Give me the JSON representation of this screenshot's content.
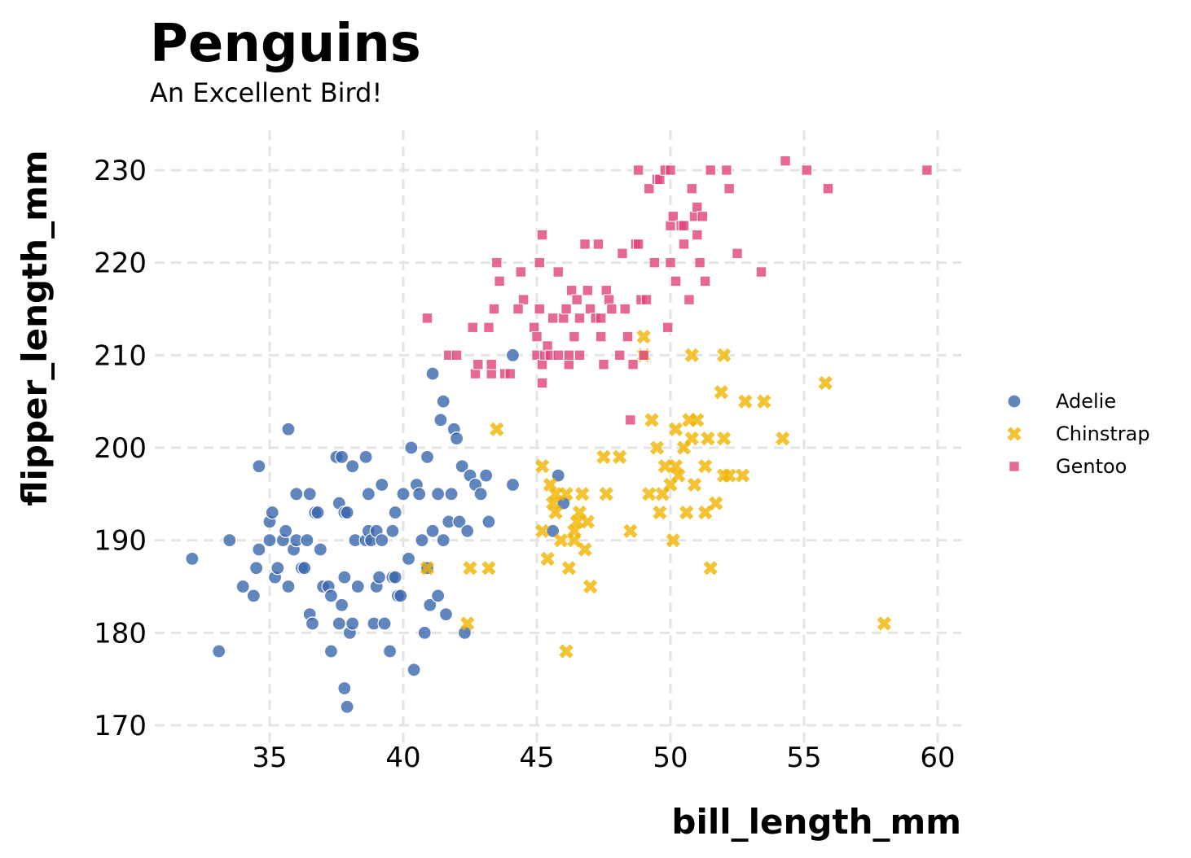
{
  "chart_data": {
    "type": "scatter",
    "title": "Penguins",
    "subtitle": "An Excellent Bird!",
    "xlabel": "bill_length_mm",
    "ylabel": "flipper_length_mm",
    "xlim": [
      31,
      61
    ],
    "ylim": [
      169,
      234
    ],
    "xticks": [
      35,
      40,
      45,
      50,
      55,
      60
    ],
    "xtick_labels": [
      "35",
      "40",
      "45",
      "50",
      "55",
      "60"
    ],
    "yticks": [
      170,
      180,
      190,
      200,
      210,
      220,
      230
    ],
    "ytick_labels": [
      "170",
      "180",
      "190",
      "200",
      "210",
      "220",
      "230"
    ],
    "grid": true,
    "legend_position": "right",
    "series": [
      {
        "name": "Adelie",
        "marker": "circle",
        "color": "#3a66ad",
        "points": [
          [
            32.1,
            188
          ],
          [
            33.1,
            178
          ],
          [
            33.5,
            190
          ],
          [
            34.0,
            185
          ],
          [
            34.4,
            184
          ],
          [
            34.5,
            187
          ],
          [
            34.6,
            198
          ],
          [
            34.6,
            189
          ],
          [
            35.0,
            190
          ],
          [
            35.0,
            192
          ],
          [
            35.1,
            193
          ],
          [
            35.2,
            186
          ],
          [
            35.3,
            187
          ],
          [
            35.5,
            190
          ],
          [
            35.6,
            191
          ],
          [
            35.7,
            202
          ],
          [
            35.7,
            185
          ],
          [
            35.9,
            189
          ],
          [
            36.0,
            195
          ],
          [
            36.0,
            190
          ],
          [
            36.2,
            187
          ],
          [
            36.3,
            187
          ],
          [
            36.4,
            190
          ],
          [
            36.5,
            182
          ],
          [
            36.5,
            195
          ],
          [
            36.6,
            181
          ],
          [
            36.7,
            193
          ],
          [
            36.8,
            193
          ],
          [
            36.9,
            189
          ],
          [
            37.0,
            185
          ],
          [
            37.2,
            185
          ],
          [
            37.3,
            184
          ],
          [
            37.3,
            178
          ],
          [
            37.5,
            199
          ],
          [
            37.6,
            194
          ],
          [
            37.6,
            181
          ],
          [
            37.7,
            199
          ],
          [
            37.7,
            183
          ],
          [
            37.8,
            186
          ],
          [
            37.8,
            174
          ],
          [
            37.8,
            193
          ],
          [
            37.9,
            172
          ],
          [
            37.9,
            193
          ],
          [
            38.0,
            180
          ],
          [
            38.1,
            181
          ],
          [
            38.1,
            198
          ],
          [
            38.2,
            190
          ],
          [
            38.3,
            185
          ],
          [
            38.6,
            190
          ],
          [
            38.6,
            199
          ],
          [
            38.7,
            195
          ],
          [
            38.7,
            191
          ],
          [
            38.8,
            190
          ],
          [
            38.9,
            181
          ],
          [
            39.0,
            191
          ],
          [
            39.0,
            185
          ],
          [
            39.1,
            186
          ],
          [
            39.2,
            196
          ],
          [
            39.2,
            190
          ],
          [
            39.3,
            181
          ],
          [
            39.5,
            178
          ],
          [
            39.6,
            186
          ],
          [
            39.6,
            191
          ],
          [
            39.7,
            186
          ],
          [
            39.7,
            193
          ],
          [
            39.8,
            184
          ],
          [
            39.9,
            184
          ],
          [
            40.0,
            195
          ],
          [
            40.2,
            188
          ],
          [
            40.3,
            200
          ],
          [
            40.4,
            176
          ],
          [
            40.5,
            196
          ],
          [
            40.6,
            195
          ],
          [
            40.7,
            190
          ],
          [
            40.8,
            180
          ],
          [
            40.9,
            199
          ],
          [
            40.9,
            187
          ],
          [
            41.0,
            183
          ],
          [
            41.1,
            208
          ],
          [
            41.1,
            191
          ],
          [
            41.3,
            184
          ],
          [
            41.3,
            195
          ],
          [
            41.4,
            203
          ],
          [
            41.5,
            205
          ],
          [
            41.5,
            190
          ],
          [
            41.6,
            182
          ],
          [
            41.7,
            192
          ],
          [
            41.8,
            195
          ],
          [
            41.9,
            202
          ],
          [
            42.0,
            201
          ],
          [
            42.1,
            192
          ],
          [
            42.2,
            198
          ],
          [
            42.3,
            180
          ],
          [
            42.4,
            191
          ],
          [
            42.5,
            197
          ],
          [
            42.7,
            196
          ],
          [
            42.9,
            195
          ],
          [
            43.1,
            197
          ],
          [
            43.2,
            192
          ],
          [
            44.1,
            196
          ],
          [
            44.1,
            210
          ],
          [
            45.8,
            197
          ],
          [
            46.0,
            194
          ],
          [
            45.6,
            191
          ]
        ]
      },
      {
        "name": "Chinstrap",
        "marker": "x",
        "color": "#f0b400",
        "points": [
          [
            40.9,
            187
          ],
          [
            42.4,
            181
          ],
          [
            42.5,
            187
          ],
          [
            43.2,
            187
          ],
          [
            43.5,
            202
          ],
          [
            45.2,
            198
          ],
          [
            45.2,
            191
          ],
          [
            45.4,
            188
          ],
          [
            45.5,
            196
          ],
          [
            45.6,
            194
          ],
          [
            45.7,
            195
          ],
          [
            45.7,
            193
          ],
          [
            45.9,
            190
          ],
          [
            46.1,
            195
          ],
          [
            46.1,
            178
          ],
          [
            46.2,
            187
          ],
          [
            46.4,
            190
          ],
          [
            46.4,
            191
          ],
          [
            46.5,
            192
          ],
          [
            46.6,
            193
          ],
          [
            46.7,
            195
          ],
          [
            46.8,
            189
          ],
          [
            46.9,
            192
          ],
          [
            47.0,
            185
          ],
          [
            47.5,
            199
          ],
          [
            47.6,
            195
          ],
          [
            48.1,
            199
          ],
          [
            48.5,
            191
          ],
          [
            49.0,
            212
          ],
          [
            49.2,
            195
          ],
          [
            49.3,
            203
          ],
          [
            49.5,
            200
          ],
          [
            49.6,
            193
          ],
          [
            49.7,
            195
          ],
          [
            49.8,
            198
          ],
          [
            50.0,
            196
          ],
          [
            50.1,
            190
          ],
          [
            50.2,
            202
          ],
          [
            50.2,
            198
          ],
          [
            50.3,
            197
          ],
          [
            50.5,
            200
          ],
          [
            50.6,
            193
          ],
          [
            50.7,
            203
          ],
          [
            50.8,
            201
          ],
          [
            50.9,
            196
          ],
          [
            51.0,
            203
          ],
          [
            51.3,
            193
          ],
          [
            51.3,
            198
          ],
          [
            51.4,
            201
          ],
          [
            51.5,
            187
          ],
          [
            51.7,
            194
          ],
          [
            52.0,
            201
          ],
          [
            52.0,
            197
          ],
          [
            52.2,
            197
          ],
          [
            52.7,
            197
          ],
          [
            52.8,
            205
          ],
          [
            53.5,
            205
          ],
          [
            54.2,
            201
          ],
          [
            55.8,
            207
          ],
          [
            58.0,
            181
          ],
          [
            50.8,
            210
          ],
          [
            52.0,
            210
          ],
          [
            51.9,
            206
          ],
          [
            49.0,
            210
          ]
        ]
      },
      {
        "name": "Gentoo",
        "marker": "square",
        "color": "#e0427a",
        "points": [
          [
            40.9,
            214
          ],
          [
            41.7,
            210
          ],
          [
            42.0,
            210
          ],
          [
            42.6,
            213
          ],
          [
            42.7,
            208
          ],
          [
            42.8,
            209
          ],
          [
            43.2,
            213
          ],
          [
            43.3,
            208
          ],
          [
            43.3,
            209
          ],
          [
            43.4,
            215
          ],
          [
            43.5,
            220
          ],
          [
            43.6,
            218
          ],
          [
            43.8,
            208
          ],
          [
            44.0,
            208
          ],
          [
            44.4,
            219
          ],
          [
            44.5,
            216
          ],
          [
            44.9,
            213
          ],
          [
            45.0,
            212
          ],
          [
            45.0,
            210
          ],
          [
            45.1,
            215
          ],
          [
            45.1,
            220
          ],
          [
            45.2,
            209
          ],
          [
            45.2,
            223
          ],
          [
            45.3,
            210
          ],
          [
            45.4,
            211
          ],
          [
            45.5,
            210
          ],
          [
            45.6,
            214
          ],
          [
            45.8,
            210
          ],
          [
            45.8,
            219
          ],
          [
            46.0,
            214
          ],
          [
            46.1,
            215
          ],
          [
            46.2,
            209
          ],
          [
            46.3,
            217
          ],
          [
            46.4,
            212
          ],
          [
            46.5,
            216
          ],
          [
            46.6,
            214
          ],
          [
            46.6,
            210
          ],
          [
            46.8,
            222
          ],
          [
            46.9,
            217
          ],
          [
            47.0,
            215
          ],
          [
            47.2,
            214
          ],
          [
            47.3,
            222
          ],
          [
            47.4,
            212
          ],
          [
            47.4,
            214
          ],
          [
            47.5,
            209
          ],
          [
            47.6,
            217
          ],
          [
            47.7,
            216
          ],
          [
            47.8,
            215
          ],
          [
            48.1,
            210
          ],
          [
            48.2,
            221
          ],
          [
            48.3,
            215
          ],
          [
            48.4,
            212
          ],
          [
            48.6,
            209
          ],
          [
            48.7,
            222
          ],
          [
            48.8,
            222
          ],
          [
            48.9,
            216
          ],
          [
            49.0,
            210
          ],
          [
            49.1,
            216
          ],
          [
            49.2,
            228
          ],
          [
            49.4,
            220
          ],
          [
            49.5,
            229
          ],
          [
            49.6,
            229
          ],
          [
            49.8,
            230
          ],
          [
            49.9,
            213
          ],
          [
            50.0,
            220
          ],
          [
            50.0,
            224
          ],
          [
            50.1,
            225
          ],
          [
            50.2,
            218
          ],
          [
            50.4,
            224
          ],
          [
            50.5,
            224
          ],
          [
            50.5,
            222
          ],
          [
            50.7,
            216
          ],
          [
            50.8,
            228
          ],
          [
            50.9,
            225
          ],
          [
            51.0,
            223
          ],
          [
            51.1,
            220
          ],
          [
            51.3,
            218
          ],
          [
            51.5,
            230
          ],
          [
            52.1,
            230
          ],
          [
            52.2,
            228
          ],
          [
            52.5,
            221
          ],
          [
            53.4,
            219
          ],
          [
            54.3,
            231
          ],
          [
            55.1,
            230
          ],
          [
            55.9,
            228
          ],
          [
            59.6,
            230
          ],
          [
            45.2,
            207
          ],
          [
            48.5,
            203
          ],
          [
            48.8,
            230
          ],
          [
            50.0,
            230
          ],
          [
            51.0,
            226
          ],
          [
            51.2,
            225
          ],
          [
            46.2,
            210
          ],
          [
            44.3,
            215
          ]
        ]
      }
    ]
  }
}
